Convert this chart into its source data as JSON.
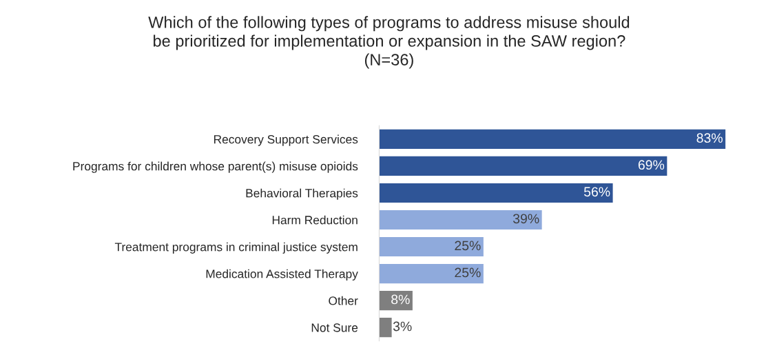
{
  "chart_data": {
    "type": "bar",
    "orientation": "horizontal",
    "title": "Which of the following types of programs to address misuse should\nbe prioritized for implementation or expansion in the SAW region?\n(N=36)",
    "categories": [
      "Recovery Support Services",
      "Programs for children whose parent(s) misuse opioids",
      "Behavioral Therapies",
      "Harm Reduction",
      "Treatment programs in criminal justice system",
      "Medication Assisted Therapy",
      "Other",
      "Not Sure"
    ],
    "values": [
      83,
      69,
      56,
      39,
      25,
      25,
      8,
      3
    ],
    "colors": [
      "#2f5597",
      "#2f5597",
      "#2f5597",
      "#8faadc",
      "#8faadc",
      "#8faadc",
      "#7f7f7f",
      "#7f7f7f"
    ],
    "value_labels": [
      "83%",
      "69%",
      "56%",
      "39%",
      "25%",
      "25%",
      "8%",
      "3%"
    ],
    "grid": false,
    "legend": false
  }
}
